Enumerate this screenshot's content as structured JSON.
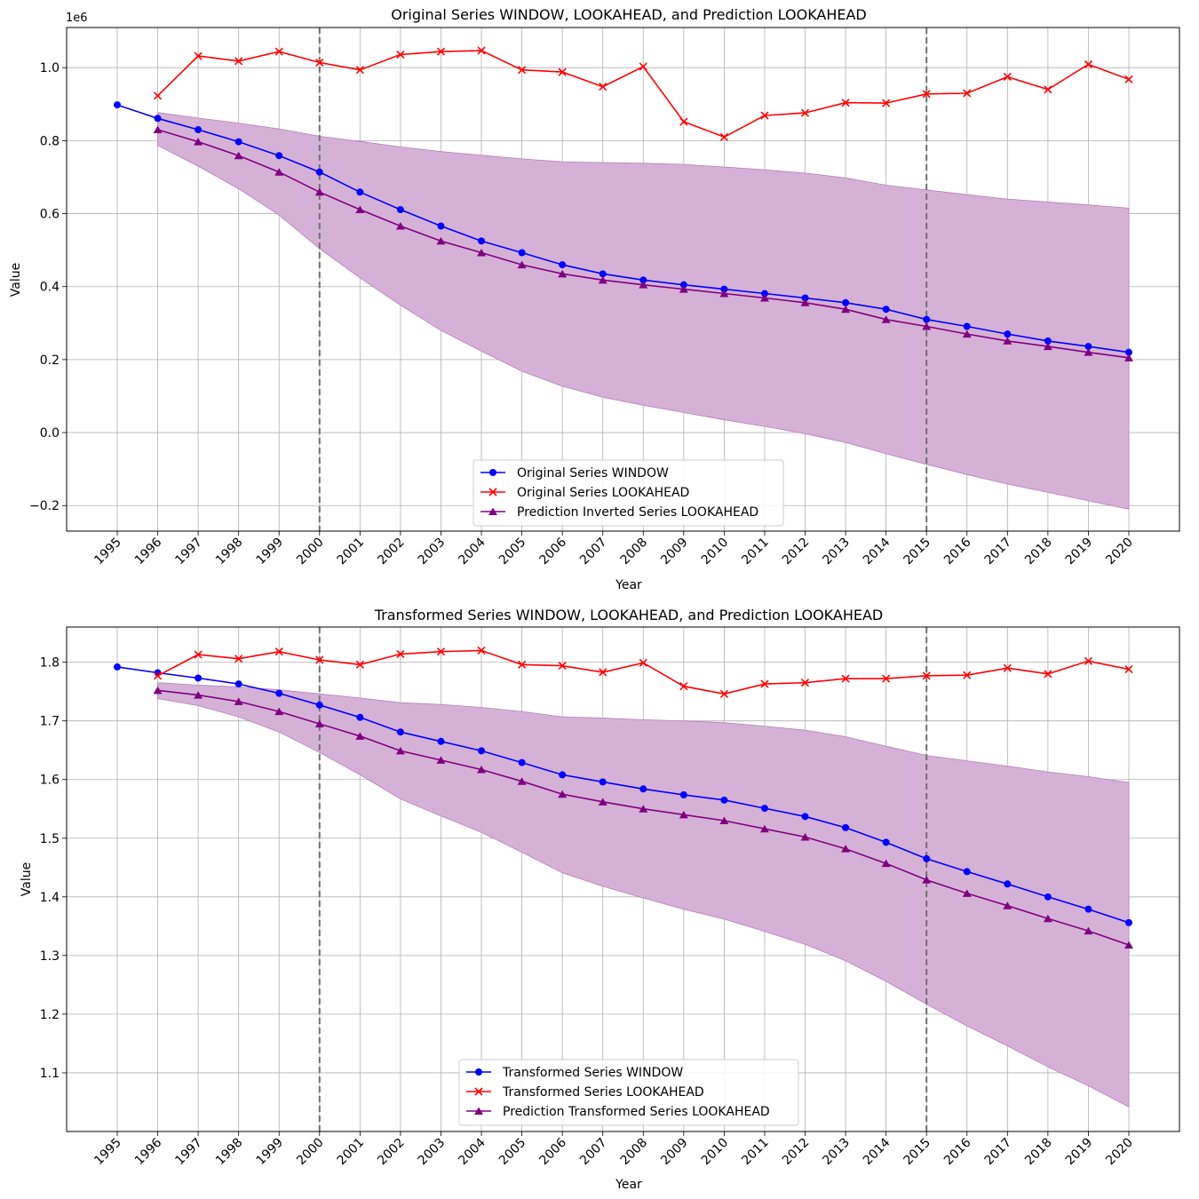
{
  "colors": {
    "window": "#0000ff",
    "lookahead": "#ff0000",
    "prediction": "#800080",
    "band": "#d6b1d7",
    "vline": "#707070",
    "grid": "#b0b0b0"
  },
  "chart_data": [
    {
      "type": "line",
      "title": "Original Series WINDOW, LOOKAHEAD, and Prediction LOOKAHEAD",
      "xlabel": "Year",
      "ylabel": "Value",
      "offset_label": "1e6",
      "ylim": [
        -0.27,
        1.11
      ],
      "yticks": [
        -0.2,
        0.0,
        0.2,
        0.4,
        0.6,
        0.8,
        1.0
      ],
      "ytick_labels": [
        "−0.2",
        "0.0",
        "0.2",
        "0.4",
        "0.6",
        "0.8",
        "1.0"
      ],
      "x": [
        "1995",
        "1996",
        "1997",
        "1998",
        "1999",
        "2000",
        "2001",
        "2002",
        "2003",
        "2004",
        "2005",
        "2006",
        "2007",
        "2008",
        "2009",
        "2010",
        "2011",
        "2012",
        "2013",
        "2014",
        "2015",
        "2016",
        "2017",
        "2018",
        "2019",
        "2020"
      ],
      "vlines": [
        "2000",
        "2015"
      ],
      "legend_position": "lower-center",
      "series": [
        {
          "name": "Original Series WINDOW",
          "key": "window",
          "marker": "circle",
          "values": [
            0.898,
            0.861,
            0.83,
            0.797,
            0.759,
            0.714,
            0.659,
            0.611,
            0.566,
            0.525,
            0.493,
            0.46,
            0.435,
            0.418,
            0.405,
            0.393,
            0.381,
            0.369,
            0.356,
            0.338,
            0.31,
            0.291,
            0.27,
            0.251,
            0.236,
            0.22
          ]
        },
        {
          "name": "Original Series LOOKAHEAD",
          "key": "lookahead",
          "marker": "x",
          "values": [
            null,
            0.923,
            1.032,
            1.018,
            1.044,
            1.014,
            0.994,
            1.036,
            1.044,
            1.047,
            0.994,
            0.988,
            0.948,
            1.003,
            0.852,
            0.81,
            0.869,
            0.876,
            0.904,
            0.903,
            0.928,
            0.93,
            0.975,
            0.94,
            1.009,
            0.968
          ]
        },
        {
          "name": "Prediction Inverted Series LOOKAHEAD",
          "key": "prediction",
          "marker": "triangle",
          "values": [
            null,
            0.83,
            0.797,
            0.759,
            0.714,
            0.659,
            0.611,
            0.566,
            0.525,
            0.493,
            0.46,
            0.435,
            0.418,
            0.405,
            0.393,
            0.381,
            0.369,
            0.356,
            0.338,
            0.31,
            0.291,
            0.27,
            0.251,
            0.236,
            0.22,
            0.205
          ]
        }
      ],
      "band": {
        "upper": [
          null,
          0.877,
          0.862,
          0.848,
          0.832,
          0.812,
          0.798,
          0.783,
          0.77,
          0.76,
          0.75,
          0.742,
          0.74,
          0.738,
          0.735,
          0.728,
          0.72,
          0.711,
          0.698,
          0.678,
          0.665,
          0.652,
          0.64,
          0.632,
          0.624,
          0.615
        ],
        "lower": [
          null,
          0.787,
          0.73,
          0.668,
          0.596,
          0.504,
          0.424,
          0.349,
          0.28,
          0.223,
          0.168,
          0.127,
          0.097,
          0.075,
          0.055,
          0.035,
          0.017,
          -0.003,
          -0.027,
          -0.058,
          -0.087,
          -0.115,
          -0.141,
          -0.164,
          -0.187,
          -0.21
        ]
      }
    },
    {
      "type": "line",
      "title": "Transformed Series WINDOW, LOOKAHEAD, and Prediction LOOKAHEAD",
      "xlabel": "Year",
      "ylabel": "Value",
      "offset_label": "",
      "ylim": [
        1.0,
        1.86
      ],
      "yticks": [
        1.1,
        1.2,
        1.3,
        1.4,
        1.5,
        1.6,
        1.7,
        1.8
      ],
      "ytick_labels": [
        "1.1",
        "1.2",
        "1.3",
        "1.4",
        "1.5",
        "1.6",
        "1.7",
        "1.8"
      ],
      "x": [
        "1995",
        "1996",
        "1997",
        "1998",
        "1999",
        "2000",
        "2001",
        "2002",
        "2003",
        "2004",
        "2005",
        "2006",
        "2007",
        "2008",
        "2009",
        "2010",
        "2011",
        "2012",
        "2013",
        "2014",
        "2015",
        "2016",
        "2017",
        "2018",
        "2019",
        "2020"
      ],
      "vlines": [
        "2000",
        "2015"
      ],
      "legend_position": "lower-center",
      "series": [
        {
          "name": "Transformed Series WINDOW",
          "key": "window",
          "marker": "circle",
          "values": [
            1.792,
            1.782,
            1.773,
            1.763,
            1.747,
            1.727,
            1.706,
            1.681,
            1.665,
            1.649,
            1.629,
            1.608,
            1.596,
            1.584,
            1.574,
            1.565,
            1.551,
            1.537,
            1.518,
            1.493,
            1.465,
            1.443,
            1.422,
            1.4,
            1.379,
            1.356
          ]
        },
        {
          "name": "Transformed Series LOOKAHEAD",
          "key": "lookahead",
          "marker": "x",
          "values": [
            null,
            1.777,
            1.813,
            1.806,
            1.818,
            1.804,
            1.796,
            1.814,
            1.818,
            1.82,
            1.796,
            1.794,
            1.783,
            1.799,
            1.759,
            1.746,
            1.763,
            1.765,
            1.772,
            1.772,
            1.777,
            1.778,
            1.79,
            1.78,
            1.802,
            1.788
          ]
        },
        {
          "name": "Prediction Transformed Series LOOKAHEAD",
          "key": "prediction",
          "marker": "triangle",
          "values": [
            null,
            1.752,
            1.744,
            1.733,
            1.716,
            1.695,
            1.674,
            1.649,
            1.633,
            1.617,
            1.597,
            1.575,
            1.562,
            1.55,
            1.54,
            1.53,
            1.516,
            1.502,
            1.482,
            1.457,
            1.429,
            1.406,
            1.385,
            1.363,
            1.342,
            1.318
          ]
        }
      ],
      "band": {
        "upper": [
          null,
          1.765,
          1.761,
          1.758,
          1.753,
          1.746,
          1.739,
          1.731,
          1.728,
          1.723,
          1.716,
          1.707,
          1.705,
          1.702,
          1.7,
          1.697,
          1.691,
          1.684,
          1.673,
          1.657,
          1.641,
          1.632,
          1.623,
          1.613,
          1.605,
          1.595
        ],
        "lower": [
          null,
          1.738,
          1.726,
          1.707,
          1.681,
          1.646,
          1.608,
          1.567,
          1.538,
          1.51,
          1.476,
          1.441,
          1.418,
          1.398,
          1.379,
          1.362,
          1.341,
          1.319,
          1.291,
          1.256,
          1.217,
          1.18,
          1.146,
          1.11,
          1.078,
          1.042
        ]
      }
    }
  ]
}
